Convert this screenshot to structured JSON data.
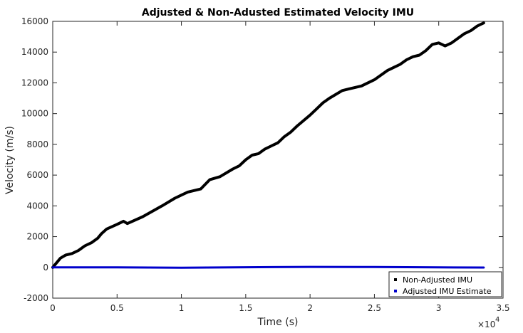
{
  "chart_data": {
    "type": "line",
    "title": "Adjusted & Non-Adusted Estimated Velocity IMU",
    "xlabel": "Time (s)",
    "ylabel": "Velocity (m/s)",
    "xlim": [
      0,
      35000
    ],
    "ylim": [
      -2000,
      16000
    ],
    "x_ticks": [
      0,
      5000,
      10000,
      15000,
      20000,
      25000,
      30000,
      35000
    ],
    "x_tick_labels": [
      "0",
      "0.5",
      "1",
      "1.5",
      "2",
      "2.5",
      "3",
      "3.5"
    ],
    "x_exponent_base": "×10",
    "x_exponent_power": "4",
    "y_ticks": [
      -2000,
      0,
      2000,
      4000,
      6000,
      8000,
      10000,
      12000,
      14000,
      16000
    ],
    "y_tick_labels": [
      "-2000",
      "0",
      "2000",
      "4000",
      "6000",
      "8000",
      "10000",
      "12000",
      "14000",
      "16000"
    ],
    "grid": false,
    "legend_position": "bottom-right",
    "series": [
      {
        "name": "Non-Adjusted IMU",
        "color": "#000000",
        "x": [
          0,
          300,
          600,
          1000,
          1500,
          2000,
          2500,
          3000,
          3500,
          3800,
          4200,
          5000,
          5500,
          5800,
          7000,
          8500,
          9500,
          10500,
          11500,
          12200,
          13000,
          14000,
          14500,
          15000,
          15500,
          16000,
          16500,
          17000,
          17500,
          18000,
          18500,
          19000,
          20000,
          20500,
          21000,
          21500,
          22500,
          23000,
          24000,
          25000,
          26000,
          26500,
          27000,
          27500,
          28000,
          28500,
          29000,
          29500,
          30000,
          30500,
          31000,
          31500,
          32000,
          32500,
          33000,
          33500
        ],
        "values": [
          0,
          300,
          600,
          800,
          900,
          1100,
          1400,
          1600,
          1900,
          2200,
          2500,
          2800,
          3000,
          2850,
          3300,
          4000,
          4500,
          4900,
          5100,
          5700,
          5900,
          6400,
          6600,
          7000,
          7300,
          7400,
          7700,
          7900,
          8100,
          8500,
          8800,
          9200,
          9900,
          10300,
          10700,
          11000,
          11500,
          11600,
          11800,
          12200,
          12800,
          13000,
          13200,
          13500,
          13700,
          13800,
          14100,
          14500,
          14600,
          14400,
          14600,
          14900,
          15200,
          15400,
          15700,
          15900
        ]
      },
      {
        "name": "Adjusted IMU Estimate",
        "color": "#0000cc",
        "x": [
          0,
          5000,
          10000,
          15000,
          20000,
          25000,
          30000,
          33500
        ],
        "values": [
          0,
          0,
          -20,
          10,
          30,
          20,
          0,
          -10
        ]
      }
    ]
  }
}
